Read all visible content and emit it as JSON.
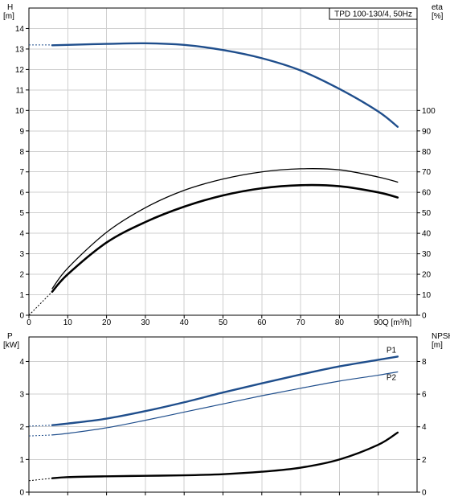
{
  "chart_data": [
    {
      "type": "line",
      "title": "TPD 100-130/4, 50Hz",
      "xlabel": "Q [m³/h]",
      "ylabel_left_name": "H",
      "ylabel_left_unit": "[m]",
      "ylabel_right_name": "eta",
      "ylabel_right_unit": "[%]",
      "xlim": [
        0,
        100
      ],
      "ylim_left": [
        0,
        15
      ],
      "ylim_right": [
        0,
        150
      ],
      "x_ticks": [
        0,
        10,
        20,
        30,
        40,
        50,
        60,
        70,
        80,
        90
      ],
      "y_ticks_left": [
        0,
        1,
        2,
        3,
        4,
        5,
        6,
        7,
        8,
        9,
        10,
        11,
        12,
        13,
        14
      ],
      "y_ticks_right": [
        0,
        10,
        20,
        30,
        40,
        50,
        60,
        70,
        80,
        90,
        100
      ],
      "grid": true,
      "series": [
        {
          "axis": "left",
          "color": "#1f4e8c",
          "width": 2.4,
          "dashed_prefix_x": [
            0,
            6
          ],
          "dashed_prefix_y": [
            13.2,
            13.2
          ],
          "x": [
            6,
            10,
            20,
            30,
            40,
            50,
            60,
            70,
            80,
            90,
            95
          ],
          "y": [
            13.18,
            13.2,
            13.25,
            13.28,
            13.2,
            12.95,
            12.55,
            11.95,
            11.05,
            9.95,
            9.2
          ]
        },
        {
          "axis": "right",
          "color": "#000000",
          "width": 1.3,
          "x": [
            6,
            10,
            20,
            30,
            40,
            50,
            60,
            70,
            80,
            90,
            95
          ],
          "y": [
            13,
            23,
            40.5,
            52.5,
            61,
            66.5,
            70,
            71.5,
            71,
            67.5,
            65
          ]
        },
        {
          "axis": "right",
          "color": "#000000",
          "width": 2.6,
          "dashed_prefix_x": [
            0,
            6
          ],
          "dashed_prefix_y": [
            0,
            11.5
          ],
          "x": [
            6,
            10,
            20,
            30,
            40,
            50,
            60,
            70,
            80,
            90,
            95
          ],
          "y": [
            11.5,
            20,
            35.5,
            45.5,
            53,
            58.5,
            62,
            63.5,
            63,
            60,
            57.5
          ]
        }
      ]
    },
    {
      "type": "line",
      "ylabel_left_name": "P",
      "ylabel_left_unit": "[kW]",
      "ylabel_right_name": "NPSH",
      "ylabel_right_unit": "[m]",
      "xlim": [
        0,
        100
      ],
      "ylim_left": [
        0,
        4.75
      ],
      "ylim_right": [
        0,
        9.5
      ],
      "y_ticks_left": [
        0,
        1,
        2,
        3,
        4
      ],
      "y_ticks_right": [
        0,
        2,
        4,
        6,
        8
      ],
      "grid": true,
      "series": [
        {
          "name": "P1",
          "axis": "left",
          "color": "#1f4e8c",
          "width": 2.4,
          "dashed_prefix_x": [
            0,
            6
          ],
          "dashed_prefix_y": [
            2.02,
            2.05
          ],
          "x": [
            6,
            10,
            20,
            30,
            40,
            50,
            60,
            70,
            80,
            90,
            95
          ],
          "y": [
            2.05,
            2.1,
            2.25,
            2.48,
            2.75,
            3.05,
            3.33,
            3.6,
            3.85,
            4.05,
            4.15
          ]
        },
        {
          "name": "P2",
          "axis": "left",
          "color": "#1f4e8c",
          "width": 1.2,
          "dashed_prefix_x": [
            0,
            6
          ],
          "dashed_prefix_y": [
            1.72,
            1.75
          ],
          "x": [
            6,
            10,
            20,
            30,
            40,
            50,
            60,
            70,
            80,
            90,
            95
          ],
          "y": [
            1.75,
            1.8,
            1.97,
            2.2,
            2.45,
            2.7,
            2.95,
            3.18,
            3.4,
            3.58,
            3.68
          ]
        },
        {
          "axis": "right",
          "color": "#000000",
          "width": 2.4,
          "dashed_prefix_x": [
            0,
            6
          ],
          "dashed_prefix_y": [
            0.7,
            0.85
          ],
          "x": [
            6,
            10,
            20,
            30,
            40,
            50,
            60,
            70,
            80,
            90,
            95
          ],
          "y": [
            0.85,
            0.92,
            0.97,
            1.0,
            1.03,
            1.1,
            1.25,
            1.5,
            2.0,
            2.9,
            3.65
          ]
        }
      ]
    }
  ]
}
